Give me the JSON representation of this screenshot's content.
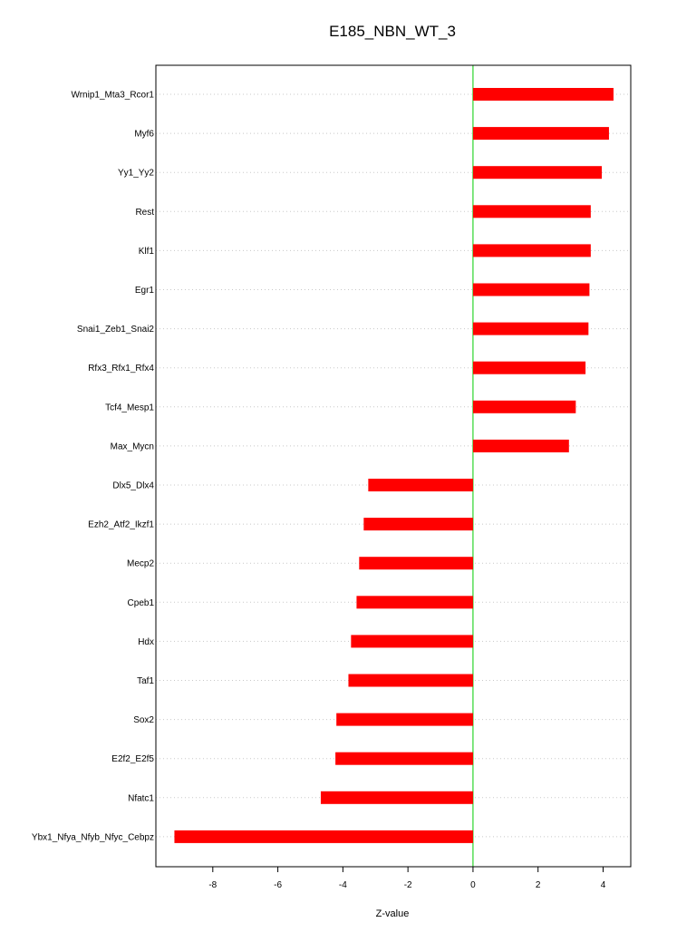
{
  "chart_data": {
    "type": "bar",
    "orientation": "horizontal",
    "title": "E185_NBN_WT_3",
    "xlabel": "Z-value",
    "ylabel": "",
    "xlim": [
      -9.75,
      4.85
    ],
    "xticks": [
      -8,
      -6,
      -4,
      -2,
      0,
      2,
      4
    ],
    "grid": "horizontal dotted",
    "reference_line_x": 0,
    "colors": {
      "bar": "#ff0000",
      "reference_line": "#00cc00",
      "grid": "#c8c8c8"
    },
    "categories": [
      "Wrnip1_Mta3_Rcor1",
      "Myf6",
      "Yy1_Yy2",
      "Rest",
      "Klf1",
      "Egr1",
      "Snai1_Zeb1_Snai2",
      "Rfx3_Rfx1_Rfx4",
      "Tcf4_Mesp1",
      "Max_Mycn",
      "Dlx5_Dlx4",
      "Ezh2_Atf2_Ikzf1",
      "Mecp2",
      "Cpeb1",
      "Hdx",
      "Taf1",
      "Sox2",
      "E2f2_E2f5",
      "Nfatc1",
      "Ybx1_Nfya_Nfyb_Nfyc_Cebpz"
    ],
    "values": [
      4.32,
      4.18,
      3.96,
      3.62,
      3.62,
      3.58,
      3.55,
      3.46,
      3.16,
      2.95,
      -3.22,
      -3.36,
      -3.5,
      -3.58,
      -3.75,
      -3.83,
      -4.2,
      -4.23,
      -4.68,
      -9.18
    ]
  }
}
